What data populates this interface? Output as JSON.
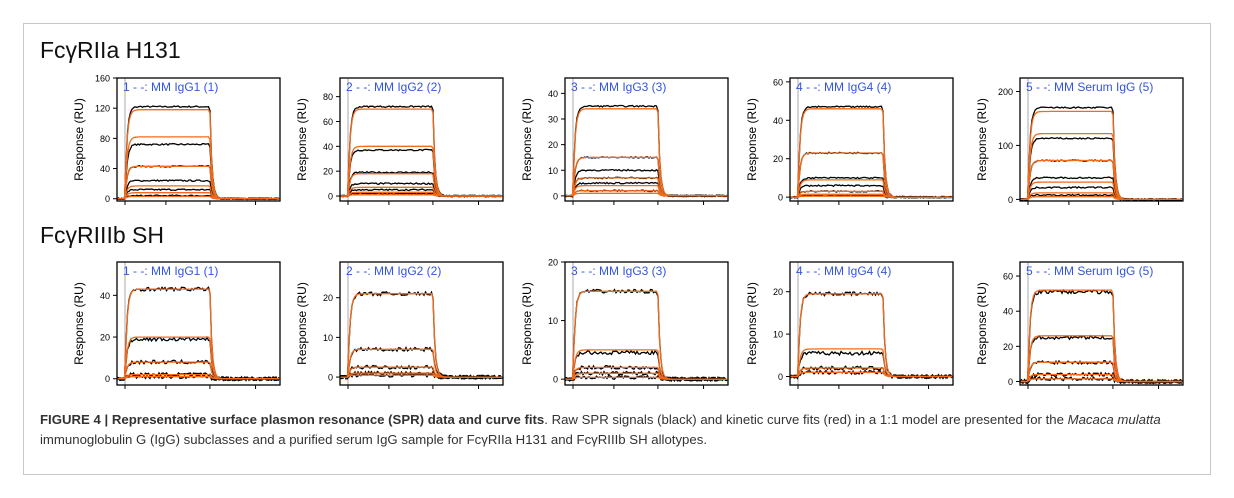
{
  "rows": [
    {
      "label": "FcγRIIa H131"
    },
    {
      "label": "FcγRIIIb SH"
    }
  ],
  "caption": {
    "figure": "FIGURE 4 | Representative surface plasmon resonance (SPR) data and curve fits",
    "text1": ". Raw SPR signals (black) and kinetic curve fits (red) in a 1:1 model are presented for the ",
    "italic": "Macaca mulatta",
    "text2": " immunoglobulin G (IgG) subclasses and a purified serum IgG sample for FcγRIIa H131 and FcγRIIIb SH allotypes."
  },
  "colors": {
    "fit": "#f26a1b",
    "raw": "#000000",
    "legend_text": "#3355dd"
  },
  "chart_data": [
    {
      "type": "line",
      "row": 0,
      "title": "1 - -: MM IgG1 (1)",
      "ylabel": "Response (RU)",
      "ylim": [
        -3,
        160
      ],
      "yticks": [
        0,
        40,
        80,
        120,
        160
      ],
      "fit_plateaus": [
        118,
        82,
        43,
        17,
        8,
        3
      ],
      "raw_plateaus": [
        122,
        72,
        43,
        24,
        12,
        4
      ]
    },
    {
      "type": "line",
      "row": 0,
      "title": "2 - -: MM IgG2 (2)",
      "ylabel": "Response (RU)",
      "ylim": [
        -4,
        95
      ],
      "yticks": [
        0,
        20,
        40,
        60,
        80
      ],
      "fit_plateaus": [
        70,
        40,
        18,
        7,
        3,
        1
      ],
      "raw_plateaus": [
        72,
        37,
        19,
        10,
        5,
        2
      ]
    },
    {
      "type": "line",
      "row": 0,
      "title": "3 - -: MM IgG3 (3)",
      "ylabel": "Response (RU)",
      "ylim": [
        -2,
        46
      ],
      "yticks": [
        0,
        10,
        20,
        30,
        40
      ],
      "fit_plateaus": [
        34,
        15,
        7,
        4,
        2,
        1
      ],
      "raw_plateaus": [
        35,
        15,
        10,
        7,
        5,
        2
      ]
    },
    {
      "type": "line",
      "row": 0,
      "title": "4 - -: MM IgG4 (4)",
      "ylabel": "Response (RU)",
      "ylim": [
        -2,
        62
      ],
      "yticks": [
        0,
        20,
        40,
        60
      ],
      "fit_plateaus": [
        46,
        23,
        9,
        3,
        1.5,
        0.5
      ],
      "raw_plateaus": [
        47,
        23,
        10,
        6,
        3,
        1
      ]
    },
    {
      "type": "line",
      "row": 0,
      "title": "5 - -: MM Serum IgG (5)",
      "ylabel": "Response (RU)",
      "ylim": [
        -3,
        225
      ],
      "yticks": [
        0,
        100,
        200
      ],
      "fit_plateaus": [
        163,
        122,
        72,
        32,
        12,
        5
      ],
      "raw_plateaus": [
        170,
        113,
        72,
        40,
        22,
        8
      ]
    },
    {
      "type": "line",
      "row": 1,
      "title": "1 - -: MM IgG1 (1)",
      "ylabel": "Response (RU)",
      "ylim": [
        -3,
        56
      ],
      "yticks": [
        0,
        20,
        40
      ],
      "fit_plateaus": [
        43,
        20,
        8,
        2,
        1
      ],
      "raw_plateaus": [
        43,
        19,
        8,
        2,
        1
      ]
    },
    {
      "type": "line",
      "row": 1,
      "title": "2 - -: MM IgG2 (2)",
      "ylabel": "Response (RU)",
      "ylim": [
        -2,
        29
      ],
      "yticks": [
        0,
        10,
        20
      ],
      "fit_plateaus": [
        21,
        7,
        2.5,
        1,
        0.5
      ],
      "raw_plateaus": [
        21,
        7,
        2.5,
        1,
        0.5
      ]
    },
    {
      "type": "line",
      "row": 1,
      "title": "3 - -: MM IgG3 (3)",
      "ylabel": "Response (RU)",
      "ylim": [
        -1,
        20
      ],
      "yticks": [
        0,
        10,
        20
      ],
      "fit_plateaus": [
        15,
        5,
        2,
        1,
        0.3
      ],
      "raw_plateaus": [
        15,
        4.5,
        2,
        1,
        0.3
      ]
    },
    {
      "type": "line",
      "row": 1,
      "title": "4 - -: MM IgG4 (4)",
      "ylabel": "Response (RU)",
      "ylim": [
        -2,
        27
      ],
      "yticks": [
        0,
        10,
        20
      ],
      "fit_plateaus": [
        19.5,
        6.5,
        2,
        1
      ],
      "raw_plateaus": [
        19.5,
        5.5,
        2,
        1
      ]
    },
    {
      "type": "line",
      "row": 1,
      "title": "5 - -: MM Serum IgG (5)",
      "ylabel": "Response (RU)",
      "ylim": [
        -2,
        68
      ],
      "yticks": [
        0,
        20,
        40,
        60
      ],
      "fit_plateaus": [
        52,
        26,
        11,
        4,
        1.5
      ],
      "raw_plateaus": [
        51,
        25,
        11,
        4,
        1.5
      ]
    }
  ]
}
